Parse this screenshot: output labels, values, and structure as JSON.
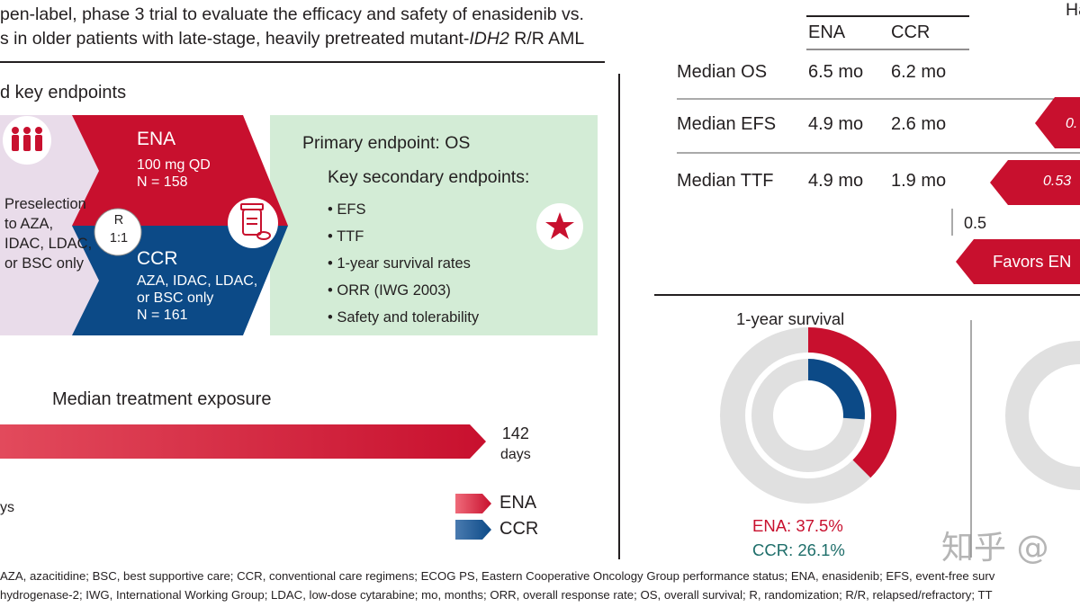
{
  "header": {
    "line1": "pen-label, phase 3 trial to evaluate the efficacy and safety of enasidenib vs.",
    "line2_a": "s in older patients with late-stage, heavily pretreated mutant-",
    "line2_italic": "IDH2",
    "line2_b": " R/R AML"
  },
  "design": {
    "section_title": "d key endpoints",
    "preselection": [
      "Preselection",
      "to AZA,",
      "IDAC, LDAC,",
      "or BSC only"
    ],
    "randomization": [
      "R",
      "1:1"
    ],
    "ena_arm": {
      "name": "ENA",
      "dose": "100 mg QD",
      "n": "N = 158"
    },
    "ccr_arm": {
      "name": "CCR",
      "detail1": "AZA, IDAC, LDAC,",
      "detail2": "or BSC only",
      "n": "N = 161"
    },
    "primary_endpoint": "Primary endpoint: OS",
    "secondary_title": "Key secondary endpoints:",
    "secondary_items": [
      "EFS",
      "TTF",
      "1-year survival rates",
      "ORR (IWG 2003)",
      "Safety and tolerability"
    ]
  },
  "exposure": {
    "title": "Median treatment exposure",
    "ena_value": "142",
    "ena_unit": "days",
    "left_cut_unit": "ys",
    "legend": [
      {
        "label": "ENA",
        "color": "#c8102e"
      },
      {
        "label": "CCR",
        "color": "#0c4a87"
      }
    ]
  },
  "outcomes": {
    "top_right_cut": "Ha",
    "columns": [
      "ENA",
      "CCR"
    ],
    "rows": [
      {
        "label": "Median OS",
        "ena": "6.5 mo",
        "ccr": "6.2 mo"
      },
      {
        "label": "Median EFS",
        "ena": "4.9 mo",
        "ccr": "2.6 mo",
        "hr_cut": "0."
      },
      {
        "label": "Median TTF",
        "ena": "4.9 mo",
        "ccr": "1.9 mo",
        "hr_cut": "0.53"
      }
    ],
    "axis_tick": "0.5",
    "favors": "Favors EN"
  },
  "survival": {
    "title": "1-year survival",
    "ena_label": "ENA: 37.5%",
    "ccr_label": "CCR: 26.1%",
    "ena_value": 37.5,
    "ccr_value": 26.1
  },
  "footnote": {
    "line1": "AZA, azacitidine; BSC, best supportive care; CCR, conventional care regimens; ECOG PS, Eastern Cooperative Oncology Group performance status; ENA, enasidenib; EFS, event-free surv",
    "line2": "hydrogenase-2; IWG, International Working Group; LDAC, low-dose cytarabine; mo, months; ORR, overall response rate; OS, overall survival; R, randomization; R/R, relapsed/refractory; TT"
  },
  "watermark": "知乎 @",
  "colors": {
    "ena": "#c8102e",
    "ccr": "#0c4a87",
    "green_panel": "#d3ecd6",
    "lavender_panel": "#e9dcea",
    "grey_ring": "#e0e0e0"
  }
}
